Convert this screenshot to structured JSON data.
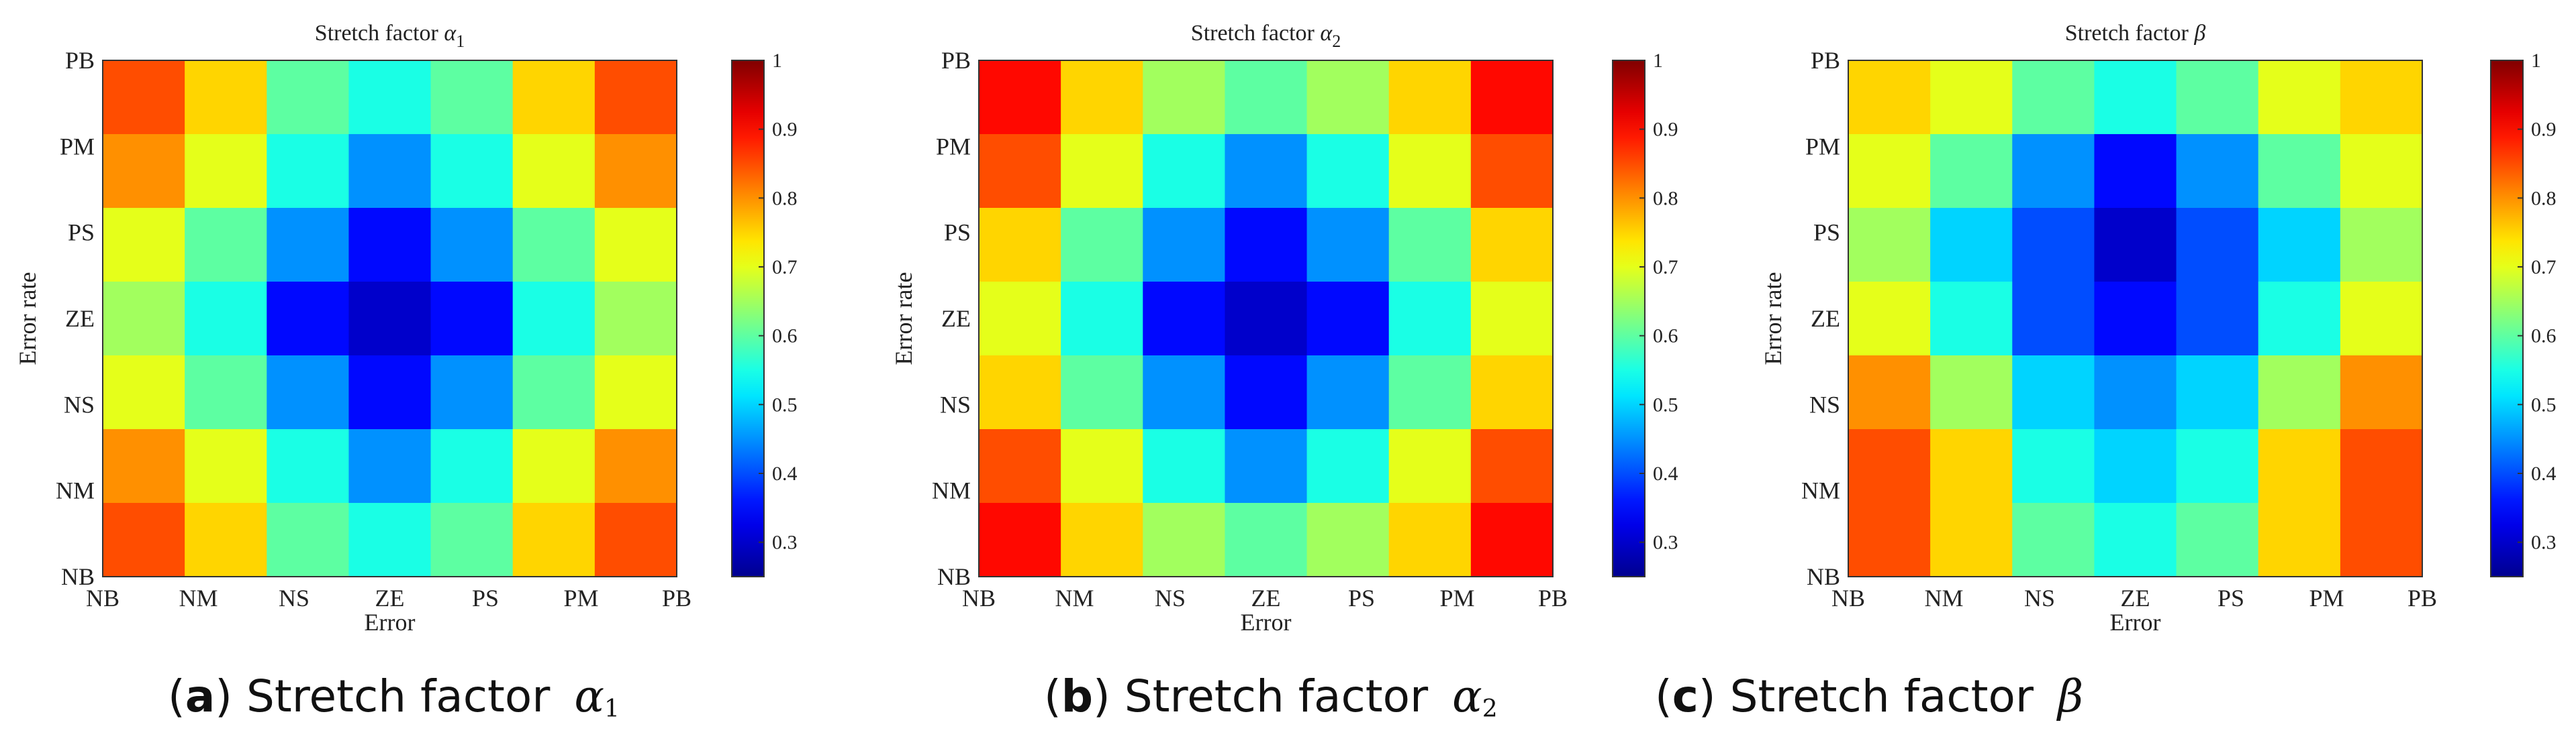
{
  "panels": [
    {
      "caption_id": "a",
      "caption_text": "Stretch factor",
      "caption_symbol": "α",
      "caption_sub": "1"
    },
    {
      "caption_id": "b",
      "caption_text": "Stretch factor",
      "caption_symbol": "α",
      "caption_sub": "2"
    },
    {
      "caption_id": "c",
      "caption_text": "Stretch factor",
      "caption_symbol": "β",
      "caption_sub": ""
    }
  ],
  "chart_data": [
    {
      "type": "heatmap",
      "title": "Stretch factor α1",
      "title_text": "Stretch factor ",
      "title_symbol": "α",
      "title_sub": "1",
      "xlabel": "Error",
      "ylabel": "Error rate",
      "x_categories": [
        "NB",
        "NM",
        "NS",
        "ZE",
        "PS",
        "PM",
        "PB"
      ],
      "y_categories": [
        "NB",
        "NM",
        "NS",
        "ZE",
        "PS",
        "PM",
        "PB"
      ],
      "rows_top_to_bottom": [
        "PB",
        "PM",
        "PS",
        "ZE",
        "NS",
        "NM",
        "NB"
      ],
      "values": [
        [
          0.85,
          0.75,
          0.6,
          0.55,
          0.6,
          0.75,
          0.85
        ],
        [
          0.8,
          0.7,
          0.55,
          0.45,
          0.55,
          0.7,
          0.8
        ],
        [
          0.7,
          0.6,
          0.45,
          0.35,
          0.45,
          0.6,
          0.7
        ],
        [
          0.65,
          0.55,
          0.35,
          0.3,
          0.35,
          0.55,
          0.65
        ],
        [
          0.7,
          0.6,
          0.45,
          0.35,
          0.45,
          0.6,
          0.7
        ],
        [
          0.8,
          0.7,
          0.55,
          0.45,
          0.55,
          0.7,
          0.8
        ],
        [
          0.85,
          0.75,
          0.6,
          0.55,
          0.6,
          0.75,
          0.85
        ]
      ],
      "colorbar_range": [
        0.25,
        1
      ],
      "colorbar_ticks": [
        "0.3",
        "0.4",
        "0.5",
        "0.6",
        "0.7",
        "0.8",
        "0.9",
        "1"
      ],
      "colormap": "jet"
    },
    {
      "type": "heatmap",
      "title": "Stretch factor α2",
      "title_text": "Stretch factor ",
      "title_symbol": "α",
      "title_sub": "2",
      "xlabel": "Error",
      "ylabel": "Error rate",
      "x_categories": [
        "NB",
        "NM",
        "NS",
        "ZE",
        "PS",
        "PM",
        "PB"
      ],
      "y_categories": [
        "NB",
        "NM",
        "NS",
        "ZE",
        "PS",
        "PM",
        "PB"
      ],
      "rows_top_to_bottom": [
        "PB",
        "PM",
        "PS",
        "ZE",
        "NS",
        "NM",
        "NB"
      ],
      "values": [
        [
          0.9,
          0.75,
          0.65,
          0.6,
          0.65,
          0.75,
          0.9
        ],
        [
          0.85,
          0.7,
          0.55,
          0.45,
          0.55,
          0.7,
          0.85
        ],
        [
          0.75,
          0.6,
          0.45,
          0.35,
          0.45,
          0.6,
          0.75
        ],
        [
          0.7,
          0.55,
          0.35,
          0.3,
          0.35,
          0.55,
          0.7
        ],
        [
          0.75,
          0.6,
          0.45,
          0.35,
          0.45,
          0.6,
          0.75
        ],
        [
          0.85,
          0.7,
          0.55,
          0.45,
          0.55,
          0.7,
          0.85
        ],
        [
          0.9,
          0.75,
          0.65,
          0.6,
          0.65,
          0.75,
          0.9
        ]
      ],
      "colorbar_range": [
        0.25,
        1
      ],
      "colorbar_ticks": [
        "0.3",
        "0.4",
        "0.5",
        "0.6",
        "0.7",
        "0.8",
        "0.9",
        "1"
      ],
      "colormap": "jet"
    },
    {
      "type": "heatmap",
      "title": "Stretch factor β",
      "title_text": "Stretch factor ",
      "title_symbol": "β",
      "title_sub": "",
      "xlabel": "Error",
      "ylabel": "Error rate",
      "x_categories": [
        "NB",
        "NM",
        "NS",
        "ZE",
        "PS",
        "PM",
        "PB"
      ],
      "y_categories": [
        "NB",
        "NM",
        "NS",
        "ZE",
        "PS",
        "PM",
        "PB"
      ],
      "rows_top_to_bottom": [
        "PB",
        "PM",
        "PS",
        "ZE",
        "NS",
        "NM",
        "NB"
      ],
      "values": [
        [
          0.75,
          0.7,
          0.6,
          0.55,
          0.6,
          0.7,
          0.75
        ],
        [
          0.7,
          0.6,
          0.45,
          0.35,
          0.45,
          0.6,
          0.7
        ],
        [
          0.65,
          0.5,
          0.4,
          0.3,
          0.4,
          0.5,
          0.65
        ],
        [
          0.7,
          0.55,
          0.4,
          0.35,
          0.4,
          0.55,
          0.7
        ],
        [
          0.8,
          0.65,
          0.5,
          0.45,
          0.5,
          0.65,
          0.8
        ],
        [
          0.85,
          0.75,
          0.55,
          0.5,
          0.55,
          0.75,
          0.85
        ],
        [
          0.85,
          0.75,
          0.6,
          0.55,
          0.6,
          0.75,
          0.85
        ]
      ],
      "colorbar_range": [
        0.25,
        1
      ],
      "colorbar_ticks": [
        "0.3",
        "0.4",
        "0.5",
        "0.6",
        "0.7",
        "0.8",
        "0.9",
        "1"
      ],
      "colormap": "jet"
    }
  ]
}
